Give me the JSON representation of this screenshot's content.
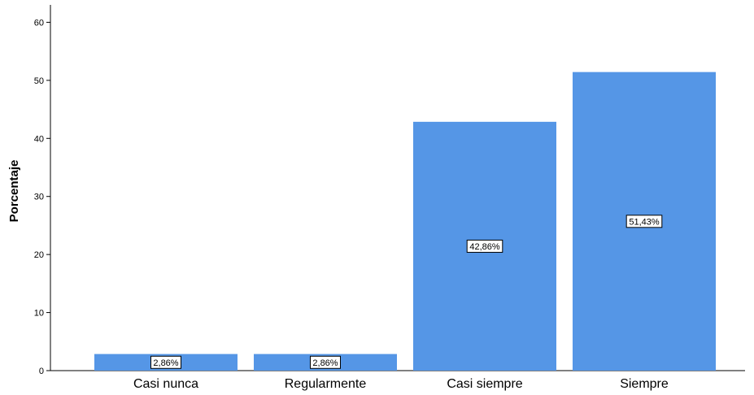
{
  "chart_data": {
    "type": "bar",
    "categories": [
      "Casi nunca",
      "Regularmente",
      "Casi siempre",
      "Siempre"
    ],
    "values": [
      2.86,
      2.86,
      42.86,
      51.43
    ],
    "data_labels": [
      "2,86%",
      "2,86%",
      "42,86%",
      "51,43%"
    ],
    "title": "",
    "xlabel": "",
    "ylabel": "Porcentaje",
    "ylim": [
      0,
      63
    ],
    "yticks": [
      0,
      10,
      20,
      30,
      40,
      50,
      60
    ],
    "bar_color": "#5596e6",
    "grid": false
  }
}
